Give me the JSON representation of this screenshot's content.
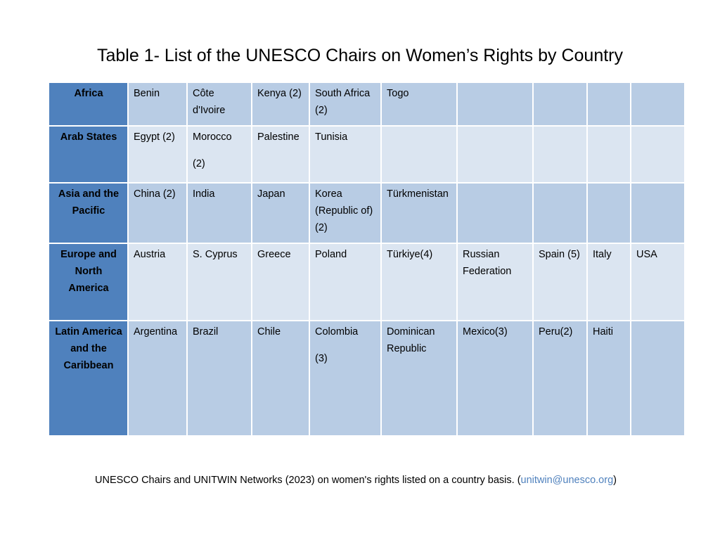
{
  "title": "Table 1- List of the UNESCO Chairs on Women’s Rights by Country",
  "rows": [
    {
      "region": "Africa",
      "cells": [
        "Benin",
        "Côte d'Ivoire",
        "Kenya (2)",
        "South Africa (2)",
        "Togo",
        "",
        "",
        "",
        ""
      ]
    },
    {
      "region": "Arab States",
      "cells": [
        "Egypt (2)",
        "Morocco",
        "Palestine",
        "Tunisia",
        "",
        "",
        "",
        "",
        ""
      ],
      "cell_suffix": {
        "1": "(2)"
      }
    },
    {
      "region": "Asia and the Pacific",
      "cells": [
        "China (2)",
        "India",
        "Japan",
        "Korea (Republic of) (2)",
        "Türkmenistan",
        "",
        "",
        "",
        ""
      ]
    },
    {
      "region": "Europe and North America",
      "cells": [
        "Austria",
        "S. Cyprus",
        "Greece",
        "Poland",
        "Türkiye(4)",
        "Russian Federation",
        "Spain (5)",
        "Italy",
        "USA"
      ]
    },
    {
      "region": "Latin America and the Caribbean",
      "cells": [
        "Argentina",
        "Brazil",
        "Chile",
        "Colombia",
        "Dominican Republic",
        "Mexico(3)",
        "Peru(2)",
        "Haiti",
        ""
      ],
      "cell_suffix": {
        "3": "(3)"
      }
    }
  ],
  "footer": {
    "text": "UNESCO Chairs and UNITWIN Networks (2023) on women's rights listed on a country basis. (",
    "link": "unitwin@unesco.org",
    "close": ")"
  },
  "colors": {
    "region_bg": "#4f81bd",
    "cell_bg_odd": "#b8cce4",
    "cell_bg_even": "#dbe5f1",
    "link": "#4f81bd"
  }
}
